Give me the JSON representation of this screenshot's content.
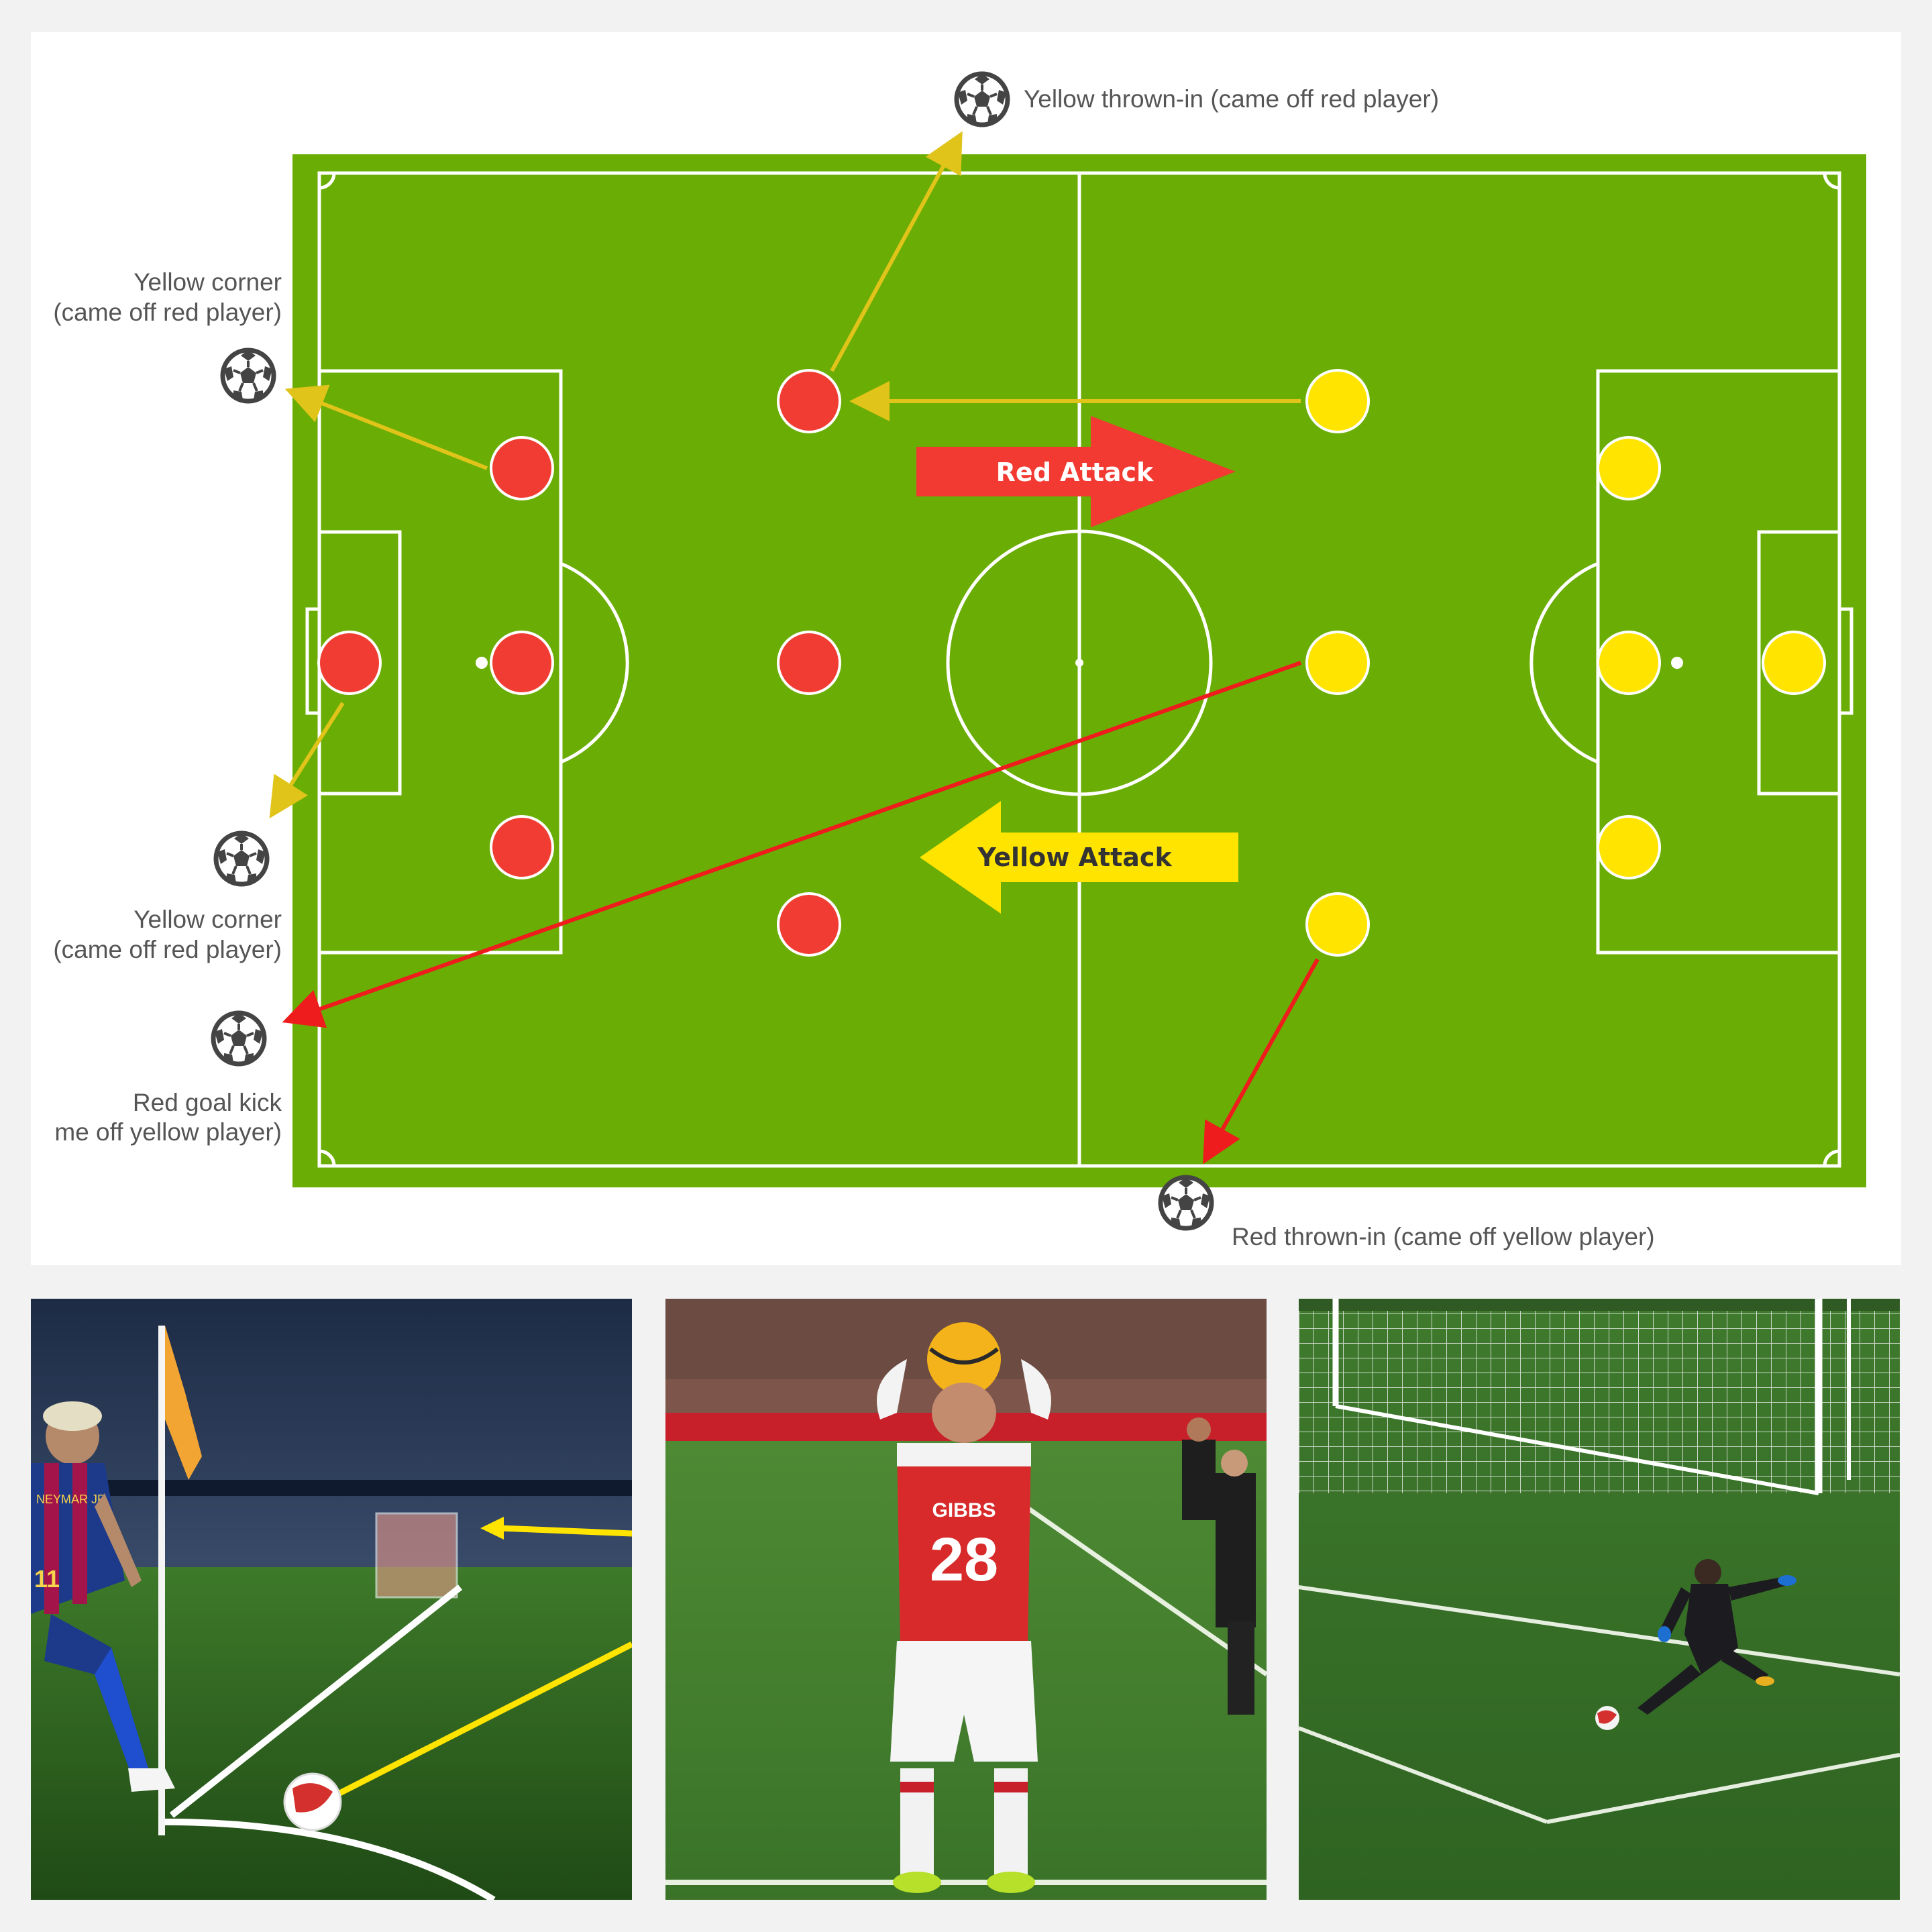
{
  "labels": {
    "yellow_throw_in": "Yellow thrown-in (came off red player)",
    "yellow_corner_top_l1": "Yellow corner",
    "yellow_corner_top_l2": "(came off red player)",
    "yellow_corner_bottom_l1": "Yellow corner",
    "yellow_corner_bottom_l2": "(came off red player)",
    "red_goal_kick_l1": "Red goal kick",
    "red_goal_kick_l2": "me off yellow player)",
    "red_throw_in": "Red thrown-in (came off yellow player)"
  },
  "attack_arrows": {
    "red": "Red Attack",
    "yellow": "Yellow Attack"
  },
  "photos": {
    "corner_kick": {
      "jersey_number": "11",
      "jersey_name": "NEYMAR JR"
    },
    "throw_in": {
      "jersey_name": "GIBBS",
      "jersey_number": "28"
    },
    "goal_kick": {}
  },
  "colors": {
    "pitch": "#6aad04",
    "red_team": "#f03c32",
    "yellow_team": "#ffe400",
    "yellow_pass": "#e0c41a",
    "red_pass": "#ee1c1c",
    "red_attack_arrow": "#f23a32",
    "yellow_attack_arrow": "#ffe400"
  },
  "icons": [
    "soccer-ball-icon"
  ]
}
